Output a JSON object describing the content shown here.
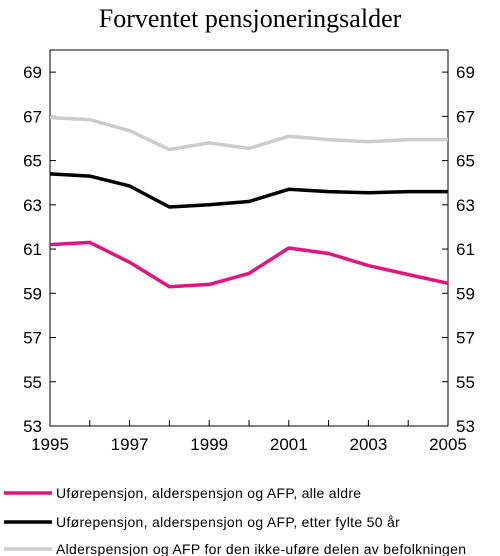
{
  "chart_data": {
    "type": "line",
    "title": "Forventet pensjoneringsalder",
    "xlabel": "",
    "ylabel": "",
    "xlim": [
      1995,
      2005
    ],
    "ylim": [
      53,
      70
    ],
    "x_ticks": [
      1995,
      1997,
      1999,
      2001,
      2003,
      2005
    ],
    "y_ticks": [
      53,
      55,
      57,
      59,
      61,
      63,
      65,
      67,
      69
    ],
    "grid": false,
    "legend_position": "bottom",
    "x": [
      1995,
      1996,
      1997,
      1998,
      1999,
      2000,
      2001,
      2002,
      2003,
      2004,
      2005
    ],
    "series": [
      {
        "name": "Uførepensjon, alderspensjon og AFP, alle aldre",
        "color": "#e0157f",
        "values": [
          61.2,
          61.3,
          60.4,
          59.3,
          59.4,
          59.9,
          61.05,
          60.8,
          60.25,
          59.85,
          59.45
        ]
      },
      {
        "name": "Uførepensjon, alderspensjon og AFP, etter fylte 50 år",
        "color": "#000000",
        "values": [
          64.4,
          64.3,
          63.85,
          62.9,
          63.0,
          63.15,
          63.7,
          63.6,
          63.55,
          63.6,
          63.6
        ]
      },
      {
        "name": "Alderspensjon og AFP for den ikke-uføre delen av befolkningen",
        "color": "#cccccc",
        "values": [
          66.95,
          66.85,
          66.35,
          65.5,
          65.8,
          65.55,
          66.1,
          65.95,
          65.85,
          65.95,
          65.95
        ]
      }
    ]
  }
}
